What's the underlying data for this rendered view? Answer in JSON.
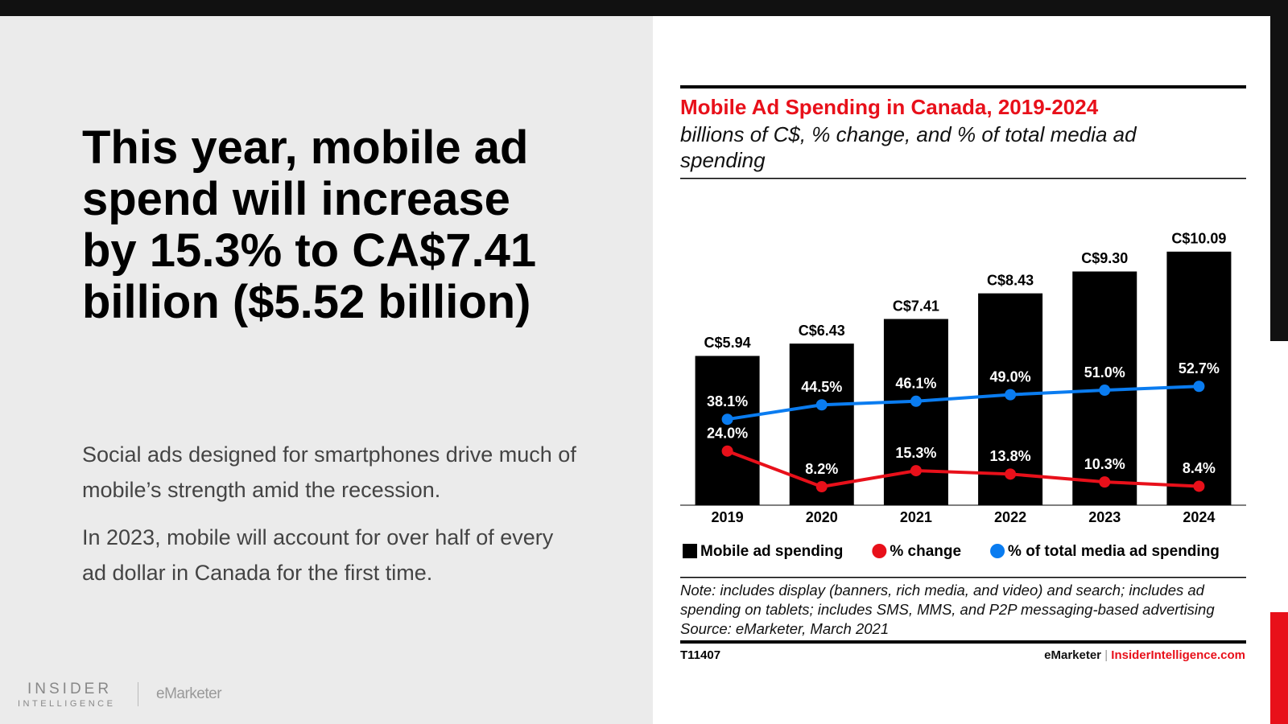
{
  "headline": "This year, mobile ad spend will increase by 15.3% to CA$7.41 billion ($5.52 billion)",
  "body": [
    "Social ads designed for smartphones drive much of mobile’s strength amid the recession.",
    "In 2023, mobile will account for over half of every ad dollar in Canada for the first time."
  ],
  "logo": {
    "line1": "INSIDER",
    "line2": "INTELLIGENCE",
    "brand": "eMarketer"
  },
  "chart_data": {
    "type": "bar",
    "title": "Mobile Ad Spending in Canada, 2019-2024",
    "subtitle": "billions of C$, % change, and % of total media ad spending",
    "categories": [
      "2019",
      "2020",
      "2021",
      "2022",
      "2023",
      "2024"
    ],
    "series": [
      {
        "name": "Mobile ad spending",
        "type": "bar",
        "color": "#000000",
        "values": [
          5.94,
          6.43,
          7.41,
          8.43,
          9.3,
          10.09
        ],
        "value_labels": [
          "C$5.94",
          "C$6.43",
          "C$7.41",
          "C$8.43",
          "C$9.30",
          "C$10.09"
        ]
      },
      {
        "name": "% change",
        "type": "line",
        "axis": "y2",
        "color": "#e8101a",
        "values": [
          24.0,
          8.2,
          15.3,
          13.8,
          10.3,
          8.4
        ],
        "value_labels": [
          "24.0%",
          "8.2%",
          "15.3%",
          "13.8%",
          "10.3%",
          "8.4%"
        ]
      },
      {
        "name": "% of total media ad spending",
        "type": "line",
        "axis": "y2",
        "color": "#0a7cf0",
        "values": [
          38.1,
          44.5,
          46.1,
          49.0,
          51.0,
          52.7
        ],
        "value_labels": [
          "38.1%",
          "44.5%",
          "46.1%",
          "49.0%",
          "51.0%",
          "52.7%"
        ]
      }
    ],
    "ylim": [
      0,
      10.5
    ],
    "y2lim": [
      0,
      117
    ],
    "note": "Note: includes display (banners, rich media, and video) and search; includes ad spending on tablets; includes SMS, MMS, and P2P messaging-based advertising",
    "source": "Source: eMarketer, March 2021",
    "id": "T11407",
    "footer": {
      "brand": "eMarketer",
      "separator": "|",
      "site": "InsiderIntelligence.com"
    }
  }
}
